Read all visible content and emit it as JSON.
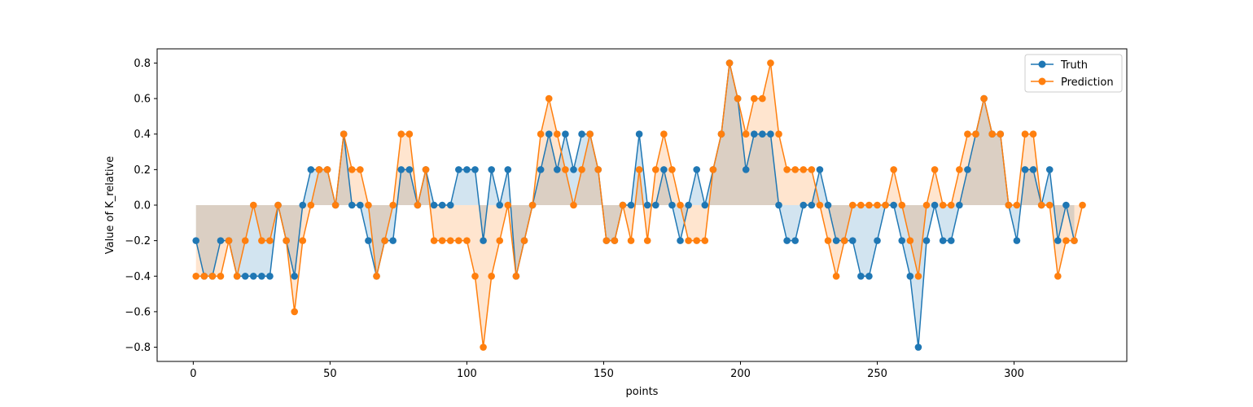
{
  "chart_data": {
    "type": "line",
    "title": "",
    "xlabel": "points",
    "ylabel": "Value of K_relative",
    "xlim": [
      -13.2,
      341.2
    ],
    "ylim": [
      -0.88,
      0.88
    ],
    "xticks": [
      0,
      50,
      100,
      150,
      200,
      250,
      300
    ],
    "yticks": [
      -0.8,
      -0.6,
      -0.4,
      -0.2,
      0.0,
      0.2,
      0.4,
      0.6,
      0.8
    ],
    "ytick_labels": [
      "−0.8",
      "−0.6",
      "−0.4",
      "−0.2",
      "0.0",
      "0.2",
      "0.4",
      "0.6",
      "0.8"
    ],
    "grid": false,
    "legend_position": "top-right",
    "x": [
      1,
      4,
      7,
      10,
      13,
      16,
      19,
      22,
      25,
      28,
      31,
      34,
      37,
      40,
      43,
      46,
      49,
      52,
      55,
      58,
      61,
      64,
      67,
      70,
      73,
      76,
      79,
      82,
      85,
      88,
      91,
      94,
      97,
      100,
      103,
      106,
      109,
      112,
      115,
      118,
      121,
      124,
      127,
      130,
      133,
      136,
      139,
      142,
      145,
      148,
      151,
      154,
      157,
      160,
      163,
      166,
      169,
      172,
      175,
      178,
      181,
      184,
      187,
      190,
      193,
      196,
      199,
      202,
      205,
      208,
      211,
      214,
      217,
      220,
      223,
      226,
      229,
      232,
      235,
      238,
      241,
      244,
      247,
      250,
      253,
      256,
      259,
      262,
      265,
      268,
      271,
      274,
      277,
      280,
      283,
      286,
      289,
      292,
      295,
      298,
      301,
      304,
      307,
      310,
      313,
      316,
      319,
      322,
      325
    ],
    "series": [
      {
        "name": "Truth",
        "color": "#1f77b4",
        "fill_color": "#1f77b4",
        "values": [
          -0.2,
          -0.4,
          -0.4,
          -0.2,
          -0.2,
          -0.4,
          -0.4,
          -0.4,
          -0.4,
          -0.4,
          0.0,
          -0.2,
          -0.4,
          0.0,
          0.2,
          0.2,
          0.2,
          0.0,
          0.4,
          0.0,
          0.0,
          -0.2,
          -0.4,
          -0.2,
          -0.2,
          0.2,
          0.2,
          0.0,
          0.2,
          0.0,
          0.0,
          0.0,
          0.2,
          0.2,
          0.2,
          -0.2,
          0.2,
          0.0,
          0.2,
          -0.4,
          -0.2,
          0.0,
          0.2,
          0.4,
          0.2,
          0.4,
          0.2,
          0.4,
          0.4,
          0.2,
          -0.2,
          -0.2,
          0.0,
          0.0,
          0.4,
          0.0,
          0.0,
          0.2,
          0.0,
          -0.2,
          0.0,
          0.2,
          0.0,
          0.2,
          0.4,
          0.8,
          0.6,
          0.2,
          0.4,
          0.4,
          0.4,
          0.0,
          -0.2,
          -0.2,
          0.0,
          0.0,
          0.2,
          0.0,
          -0.2,
          -0.2,
          -0.2,
          -0.4,
          -0.4,
          -0.2,
          0.0,
          0.0,
          -0.2,
          -0.4,
          -0.8,
          -0.2,
          0.0,
          -0.2,
          -0.2,
          0.0,
          0.2,
          0.4,
          0.6,
          0.4,
          0.4,
          0.0,
          -0.2,
          0.2,
          0.2,
          0.0,
          0.2,
          -0.2,
          0.0,
          -0.2,
          null
        ]
      },
      {
        "name": "Prediction",
        "color": "#ff7f0e",
        "fill_color": "#ff7f0e",
        "values": [
          -0.4,
          -0.4,
          -0.4,
          -0.4,
          -0.2,
          -0.4,
          -0.2,
          0.0,
          -0.2,
          -0.2,
          0.0,
          -0.2,
          -0.6,
          -0.2,
          0.0,
          0.2,
          0.2,
          0.0,
          0.4,
          0.2,
          0.2,
          0.0,
          -0.4,
          -0.2,
          0.0,
          0.4,
          0.4,
          0.0,
          0.2,
          -0.2,
          -0.2,
          -0.2,
          -0.2,
          -0.2,
          -0.4,
          -0.8,
          -0.4,
          -0.2,
          0.0,
          -0.4,
          -0.2,
          0.0,
          0.4,
          0.6,
          0.4,
          0.2,
          0.0,
          0.2,
          0.4,
          0.2,
          -0.2,
          -0.2,
          0.0,
          -0.2,
          0.2,
          -0.2,
          0.2,
          0.4,
          0.2,
          0.0,
          -0.2,
          -0.2,
          -0.2,
          0.2,
          0.4,
          0.8,
          0.6,
          0.4,
          0.6,
          0.6,
          0.8,
          0.4,
          0.2,
          0.2,
          0.2,
          0.2,
          0.0,
          -0.2,
          -0.4,
          -0.2,
          0.0,
          0.0,
          0.0,
          0.0,
          0.0,
          0.2,
          0.0,
          -0.2,
          -0.4,
          0.0,
          0.2,
          0.0,
          0.0,
          0.2,
          0.4,
          0.4,
          0.6,
          0.4,
          0.4,
          0.0,
          0.0,
          0.4,
          0.4,
          0.0,
          0.0,
          -0.4,
          -0.2,
          -0.2,
          0.0
        ]
      }
    ]
  }
}
